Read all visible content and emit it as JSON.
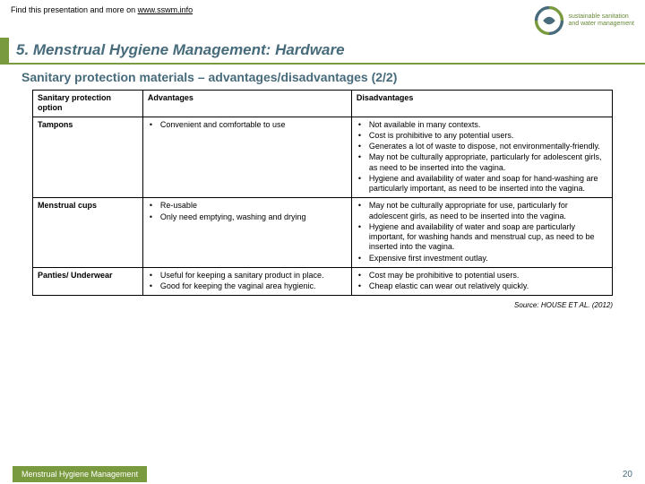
{
  "header": {
    "find_text": "Find this presentation and more on ",
    "link_text": "www.sswm.info",
    "logo_line1": "sustainable sanitation",
    "logo_line2": "and water management"
  },
  "title": "5. Menstrual Hygiene Management: Hardware",
  "subtitle": "Sanitary protection materials – advantages/disadvantages (2/2)",
  "table": {
    "headers": [
      "Sanitary protection option",
      "Advantages",
      "Disadvantages"
    ],
    "rows": [
      {
        "option": "Tampons",
        "adv": [
          "Convenient and comfortable to use"
        ],
        "dis": [
          "Not available in many contexts.",
          "Cost is prohibitive to any potential users.",
          "Generates a lot of waste to dispose, not environmentally-friendly.",
          "May not be culturally appropriate, particularly for adolescent girls, as need to be inserted into the vagina.",
          "Hygiene and availability of water and soap for hand-washing are particularly important, as need to be inserted into the vagina."
        ]
      },
      {
        "option": "Menstrual cups",
        "adv": [
          "Re-usable",
          "Only need emptying, washing and drying"
        ],
        "dis": [
          "May not be culturally appropriate for use, particularly for adolescent girls, as need to be inserted into the vagina.",
          "Hygiene and availability of water and soap are particularly important, for washing hands and menstrual cup, as need to be inserted into the vagina.",
          "Expensive first investment outlay."
        ]
      },
      {
        "option": "Panties/ Underwear",
        "adv": [
          "Useful for keeping a sanitary product in place.",
          "Good for keeping the vaginal area hygienic."
        ],
        "dis": [
          "Cost may be prohibitive to potential users.",
          "Cheap elastic can wear out relatively quickly."
        ]
      }
    ]
  },
  "source": "Source: HOUSE ET AL. (2012)",
  "footer": {
    "label": "Menstrual Hygiene Management",
    "page": "20"
  },
  "colors": {
    "accent": "#7a9a3f",
    "heading": "#476b7b"
  }
}
